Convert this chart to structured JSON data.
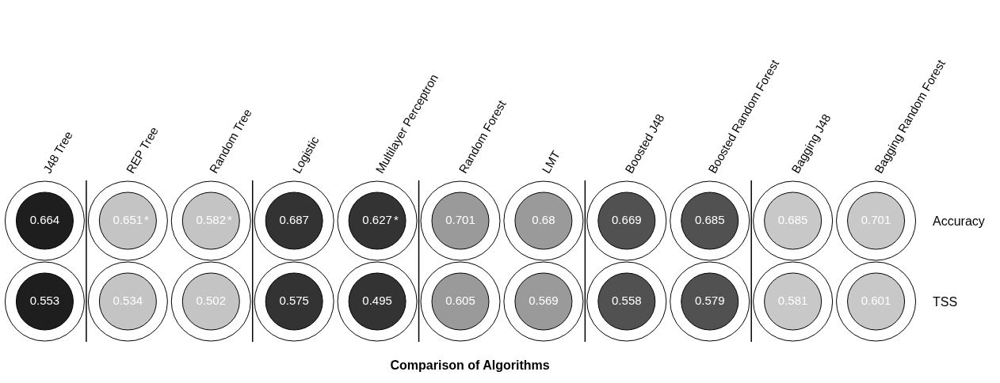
{
  "chart_data": {
    "type": "other",
    "title": "Comparison of Algorithms",
    "categories": [
      "J48 Tree",
      "REP Tree",
      "Random Tree",
      "Logistic",
      "Multilayer Perceptron",
      "Random Forest",
      "LMT",
      "Boosted J48",
      "Boosted Random Forest",
      "Bagging J48",
      "Bagging Random Forest"
    ],
    "series": [
      {
        "name": "Accuracy",
        "values": [
          0.664,
          0.651,
          0.582,
          0.687,
          0.627,
          0.701,
          0.68,
          0.669,
          0.685,
          0.685,
          0.701
        ],
        "colors": [
          "#1e1e1e",
          "#c4c4c4",
          "#c4c4c4",
          "#333333",
          "#333333",
          "#9a9a9a",
          "#9a9a9a",
          "#515151",
          "#515151",
          "#c8c8c8",
          "#c8c8c8"
        ]
      },
      {
        "name": "TSS",
        "values": [
          0.553,
          0.534,
          0.502,
          0.575,
          0.495,
          0.605,
          0.569,
          0.558,
          0.579,
          0.581,
          0.601
        ],
        "colors": [
          "#1e1e1e",
          "#c4c4c4",
          "#c4c4c4",
          "#333333",
          "#333333",
          "#9a9a9a",
          "#9a9a9a",
          "#515151",
          "#515151",
          "#c8c8c8",
          "#c8c8c8"
        ]
      }
    ],
    "data_labels": true,
    "annotations": [
      {
        "text": "*",
        "x": "REP Tree",
        "y": "Accuracy"
      },
      {
        "text": "*",
        "x": "Random Tree",
        "y": "Accuracy"
      },
      {
        "text": "*",
        "x": "Multilayer Perceptron",
        "y": "Accuracy"
      }
    ]
  }
}
